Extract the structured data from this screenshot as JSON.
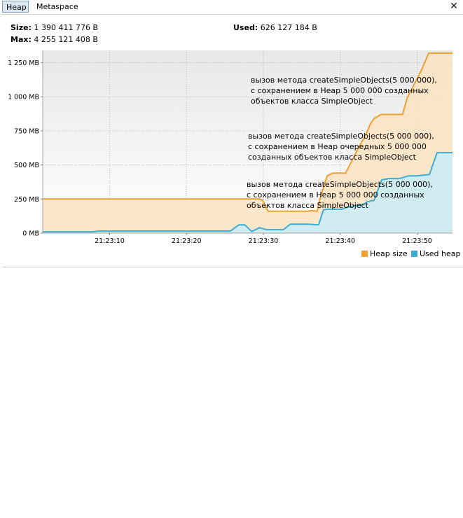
{
  "tabs": [
    {
      "label": "Heap",
      "active": true
    },
    {
      "label": "Metaspace",
      "active": false
    }
  ],
  "close_icon": "close-icon",
  "summary": {
    "size_label": "Size:",
    "size_value": "1 390 411 776 B",
    "max_label": "Max:",
    "max_value": "4 255 121 408 B",
    "used_label": "Used:",
    "used_value": "626 127 184 B"
  },
  "legend": [
    {
      "label": "Heap size",
      "color": "#f0a030"
    },
    {
      "label": "Used heap",
      "color": "#3aaed6"
    }
  ],
  "chart_data": {
    "type": "area",
    "y_unit": "MB",
    "ylim": [
      0,
      1340
    ],
    "y_ticks": [
      {
        "value": 0,
        "label": "0 MB"
      },
      {
        "value": 250,
        "label": "250 MB"
      },
      {
        "value": 500,
        "label": "500 MB"
      },
      {
        "value": 750,
        "label": "750 MB"
      },
      {
        "value": 1000,
        "label": "1 000 MB"
      },
      {
        "value": 1250,
        "label": "1 250 MB"
      }
    ],
    "xlim": [
      0,
      53.3
    ],
    "x_ticks": [
      {
        "value": 8.7,
        "label": "21:23:10"
      },
      {
        "value": 18.7,
        "label": "21:23:20"
      },
      {
        "value": 28.7,
        "label": "21:23:30"
      },
      {
        "value": 38.7,
        "label": "21:23:40"
      },
      {
        "value": 48.7,
        "label": "21:23:50"
      }
    ],
    "grid": true,
    "series": [
      {
        "name": "Heap size",
        "color": "#f0a030",
        "fill": "#fde3c1",
        "points": [
          [
            0,
            250
          ],
          [
            28.2,
            250
          ],
          [
            28.6,
            240
          ],
          [
            29.3,
            160
          ],
          [
            34.5,
            160
          ],
          [
            34.9,
            165
          ],
          [
            35.7,
            160
          ],
          [
            36.2,
            280
          ],
          [
            37.0,
            420
          ],
          [
            37.7,
            440
          ],
          [
            39.4,
            440
          ],
          [
            40.3,
            540
          ],
          [
            41.3,
            650
          ],
          [
            42.1,
            730
          ],
          [
            42.6,
            800
          ],
          [
            43.1,
            840
          ],
          [
            44.0,
            870
          ],
          [
            46.8,
            870
          ],
          [
            47.4,
            990
          ],
          [
            49.3,
            1200
          ],
          [
            50.2,
            1320
          ],
          [
            53.3,
            1320
          ]
        ]
      },
      {
        "name": "Used heap",
        "color": "#3aaed6",
        "fill": "#c9ecf8",
        "points": [
          [
            0,
            10
          ],
          [
            6.5,
            10
          ],
          [
            7.2,
            15
          ],
          [
            21.2,
            15
          ],
          [
            24.4,
            15
          ],
          [
            25.5,
            60
          ],
          [
            26.3,
            60
          ],
          [
            27.2,
            12
          ],
          [
            28.2,
            40
          ],
          [
            29.1,
            25
          ],
          [
            31.3,
            25
          ],
          [
            32.2,
            65
          ],
          [
            34.5,
            65
          ],
          [
            35.9,
            60
          ],
          [
            36.5,
            170
          ],
          [
            37.0,
            175
          ],
          [
            38.9,
            175
          ],
          [
            39.6,
            190
          ],
          [
            40.5,
            200
          ],
          [
            41.7,
            210
          ],
          [
            42.2,
            230
          ],
          [
            43.1,
            240
          ],
          [
            44.1,
            390
          ],
          [
            45.0,
            400
          ],
          [
            46.4,
            400
          ],
          [
            47.6,
            420
          ],
          [
            48.7,
            420
          ],
          [
            50.3,
            430
          ],
          [
            51.3,
            590
          ],
          [
            53.3,
            590
          ]
        ]
      }
    ],
    "annotations": [
      {
        "lines": [
          "вызов метода createSimpleObjects(5 000 000),",
          "с сохранением в Heap 5 000 000 созданных",
          "объектов класса SimpleObject"
        ]
      },
      {
        "lines": [
          "вызов метода createSimpleObjects(5 000 000),",
          "с сохранением в Heap очередных 5 000 000",
          "созданных объектов класса SimpleObject"
        ]
      },
      {
        "lines": [
          "вызов метода createSimpleObjects(5 000 000),",
          "с сохранением в Heap 5 000 000 созданных",
          "объектов класса SimpleObject"
        ]
      }
    ]
  }
}
